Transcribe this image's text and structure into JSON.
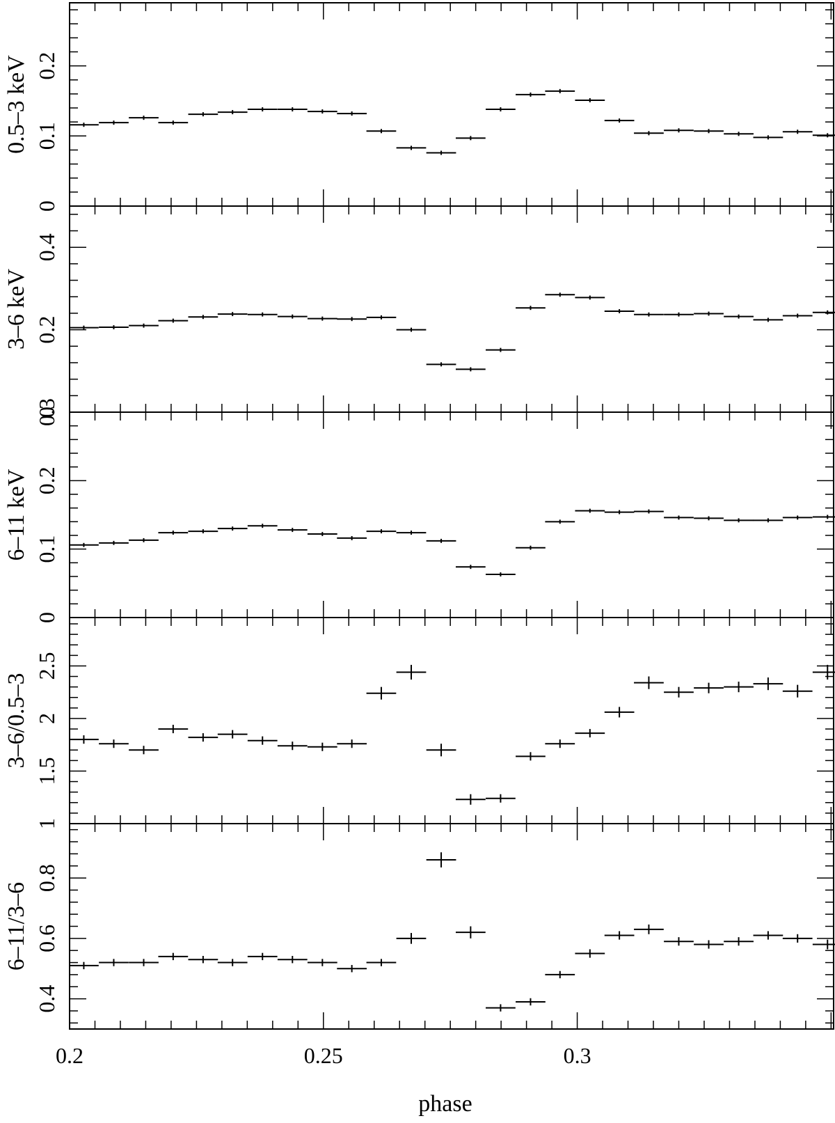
{
  "figure": {
    "xlabel": "phase",
    "xlim": [
      0.2,
      0.3505
    ],
    "x_tick_labels": [
      "0.2",
      "0.25",
      "0.3"
    ],
    "x_tick_values": [
      0.2,
      0.25,
      0.3
    ],
    "ink_color": "#000000",
    "background": "#ffffff"
  },
  "chart_data": [
    {
      "type": "scatter",
      "ylabel": "0.5–3 keV",
      "ylim": [
        0,
        0.29
      ],
      "y_tick_values": [
        0,
        0.1,
        0.2
      ],
      "y_tick_labels": [
        "0",
        "0.1",
        "0.2"
      ],
      "x": [
        0.2028,
        0.2087,
        0.2146,
        0.2204,
        0.2263,
        0.2321,
        0.238,
        0.2439,
        0.2498,
        0.2556,
        0.2614,
        0.2673,
        0.2732,
        0.279,
        0.2849,
        0.2908,
        0.2966,
        0.3025,
        0.3083,
        0.3141,
        0.32,
        0.3259,
        0.3318,
        0.3376,
        0.3434,
        0.3493
      ],
      "y": [
        0.116,
        0.119,
        0.126,
        0.119,
        0.131,
        0.134,
        0.138,
        0.138,
        0.135,
        0.132,
        0.107,
        0.083,
        0.076,
        0.097,
        0.138,
        0.159,
        0.164,
        0.151,
        0.122,
        0.104,
        0.108,
        0.107,
        0.103,
        0.098,
        0.106,
        0.101
      ],
      "y_err": [
        0.003,
        0.003,
        0.003,
        0.003,
        0.003,
        0.003,
        0.003,
        0.003,
        0.003,
        0.003,
        0.003,
        0.003,
        0.003,
        0.003,
        0.003,
        0.003,
        0.003,
        0.003,
        0.003,
        0.003,
        0.003,
        0.003,
        0.003,
        0.003,
        0.003,
        0.003
      ],
      "x_halfwidth": 0.00293
    },
    {
      "type": "scatter",
      "ylabel": "3–6 keV",
      "ylim": [
        0,
        0.5
      ],
      "y_tick_values": [
        0,
        0.2,
        0.4
      ],
      "y_tick_labels": [
        "0",
        "0.2",
        "0.4"
      ],
      "x": [
        0.2028,
        0.2087,
        0.2146,
        0.2204,
        0.2263,
        0.2321,
        0.238,
        0.2439,
        0.2498,
        0.2556,
        0.2614,
        0.2673,
        0.2732,
        0.279,
        0.2849,
        0.2908,
        0.2966,
        0.3025,
        0.3083,
        0.3141,
        0.32,
        0.3259,
        0.3318,
        0.3376,
        0.3434,
        0.3493
      ],
      "y": [
        0.205,
        0.206,
        0.21,
        0.222,
        0.231,
        0.238,
        0.237,
        0.232,
        0.227,
        0.226,
        0.23,
        0.2,
        0.116,
        0.104,
        0.151,
        0.253,
        0.285,
        0.278,
        0.245,
        0.237,
        0.237,
        0.239,
        0.232,
        0.224,
        0.234,
        0.242
      ],
      "y_err": [
        0.005,
        0.005,
        0.005,
        0.005,
        0.005,
        0.005,
        0.005,
        0.005,
        0.005,
        0.005,
        0.005,
        0.005,
        0.005,
        0.005,
        0.005,
        0.005,
        0.005,
        0.005,
        0.005,
        0.005,
        0.005,
        0.005,
        0.005,
        0.005,
        0.005,
        0.005
      ],
      "x_halfwidth": 0.00293
    },
    {
      "type": "scatter",
      "ylabel": "6–11 keV",
      "ylim": [
        0,
        0.3
      ],
      "y_tick_values": [
        0,
        0.1,
        0.2,
        0.3
      ],
      "y_tick_labels": [
        "0",
        "0.1",
        "0.2",
        "0.3"
      ],
      "x": [
        0.2028,
        0.2087,
        0.2146,
        0.2204,
        0.2263,
        0.2321,
        0.238,
        0.2439,
        0.2498,
        0.2556,
        0.2614,
        0.2673,
        0.2732,
        0.279,
        0.2849,
        0.2908,
        0.2966,
        0.3025,
        0.3083,
        0.3141,
        0.32,
        0.3259,
        0.3318,
        0.3376,
        0.3434,
        0.3493
      ],
      "y": [
        0.106,
        0.109,
        0.113,
        0.124,
        0.126,
        0.13,
        0.134,
        0.128,
        0.122,
        0.116,
        0.126,
        0.124,
        0.112,
        0.074,
        0.063,
        0.102,
        0.14,
        0.156,
        0.154,
        0.155,
        0.146,
        0.145,
        0.142,
        0.142,
        0.146,
        0.147
      ],
      "y_err": [
        0.003,
        0.003,
        0.003,
        0.003,
        0.003,
        0.003,
        0.003,
        0.003,
        0.003,
        0.003,
        0.003,
        0.003,
        0.003,
        0.003,
        0.003,
        0.003,
        0.003,
        0.003,
        0.003,
        0.003,
        0.003,
        0.003,
        0.003,
        0.003,
        0.003,
        0.003
      ],
      "x_halfwidth": 0.00293
    },
    {
      "type": "scatter",
      "ylabel": "3–6/0.5–3",
      "ylim": [
        1,
        2.96
      ],
      "y_tick_values": [
        1,
        1.5,
        2,
        2.5
      ],
      "y_tick_labels": [
        "1",
        "1.5",
        "2",
        "2.5"
      ],
      "x": [
        0.2028,
        0.2087,
        0.2146,
        0.2204,
        0.2263,
        0.2321,
        0.238,
        0.2439,
        0.2498,
        0.2556,
        0.2614,
        0.2673,
        0.2732,
        0.279,
        0.2849,
        0.2908,
        0.2966,
        0.3025,
        0.3083,
        0.3141,
        0.32,
        0.3259,
        0.3318,
        0.3376,
        0.3434,
        0.3493
      ],
      "y": [
        1.8,
        1.76,
        1.7,
        1.9,
        1.82,
        1.85,
        1.79,
        1.74,
        1.73,
        1.76,
        2.24,
        2.44,
        1.7,
        1.23,
        1.24,
        1.64,
        1.76,
        1.86,
        2.06,
        2.34,
        2.25,
        2.29,
        2.3,
        2.33,
        2.26,
        2.44
      ],
      "y_err": [
        0.04,
        0.04,
        0.04,
        0.04,
        0.04,
        0.04,
        0.04,
        0.04,
        0.04,
        0.04,
        0.06,
        0.07,
        0.06,
        0.05,
        0.04,
        0.04,
        0.04,
        0.04,
        0.05,
        0.06,
        0.05,
        0.05,
        0.05,
        0.06,
        0.06,
        0.07
      ],
      "x_halfwidth": 0.00293
    },
    {
      "type": "scatter",
      "ylabel": "6–11/3–6",
      "ylim": [
        0.3,
        0.98
      ],
      "y_tick_values": [
        0.4,
        0.6,
        0.8
      ],
      "y_tick_labels": [
        "0.4",
        "0.6",
        "0.8"
      ],
      "x": [
        0.2028,
        0.2087,
        0.2146,
        0.2204,
        0.2263,
        0.2321,
        0.238,
        0.2439,
        0.2498,
        0.2556,
        0.2614,
        0.2673,
        0.2732,
        0.279,
        0.2849,
        0.2908,
        0.2966,
        0.3025,
        0.3083,
        0.3141,
        0.32,
        0.3259,
        0.3318,
        0.3376,
        0.3434,
        0.3493
      ],
      "y": [
        0.51,
        0.52,
        0.52,
        0.54,
        0.53,
        0.52,
        0.54,
        0.53,
        0.52,
        0.5,
        0.52,
        0.6,
        0.86,
        0.62,
        0.37,
        0.39,
        0.48,
        0.55,
        0.61,
        0.63,
        0.59,
        0.58,
        0.59,
        0.61,
        0.6,
        0.58
      ],
      "y_err": [
        0.012,
        0.012,
        0.012,
        0.012,
        0.012,
        0.012,
        0.012,
        0.012,
        0.012,
        0.012,
        0.012,
        0.018,
        0.025,
        0.02,
        0.012,
        0.012,
        0.012,
        0.014,
        0.014,
        0.016,
        0.014,
        0.014,
        0.014,
        0.014,
        0.014,
        0.016
      ],
      "x_halfwidth": 0.00293
    }
  ]
}
